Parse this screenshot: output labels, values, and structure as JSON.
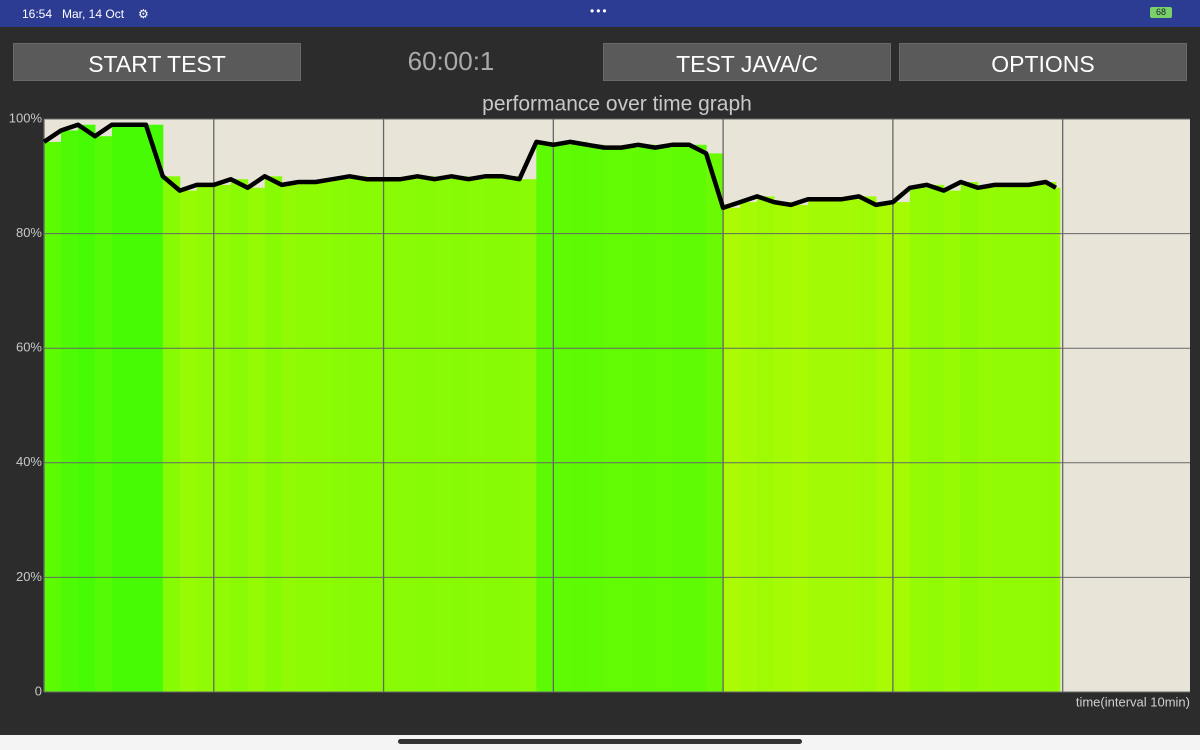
{
  "status_bar": {
    "time": "16:54",
    "date": "Mar, 14 Oct",
    "battery": "68"
  },
  "buttons": [
    "START TEST",
    "TEST JAVA/C",
    "OPTIONS"
  ],
  "timer": "60:00:1",
  "chart_data": {
    "type": "area",
    "title": "performance over time graph",
    "x_label": "time(interval 10min)",
    "x": [
      0,
      1,
      2,
      3,
      4,
      5,
      6,
      7,
      8,
      9,
      10,
      11,
      12,
      13,
      14,
      15,
      16,
      17,
      18,
      19,
      20,
      21,
      22,
      23,
      24,
      25,
      26,
      27,
      28,
      29,
      30,
      31,
      32,
      33,
      34,
      35,
      36,
      37,
      38,
      39,
      40,
      41,
      42,
      43,
      44,
      45,
      46,
      47,
      48,
      49,
      50,
      51,
      52,
      53,
      54,
      55,
      56,
      57,
      58,
      59,
      59.6
    ],
    "series": [
      {
        "name": "performance",
        "color": "#000000",
        "values": [
          96,
          98,
          99,
          97,
          99,
          99,
          99,
          90,
          87.5,
          88.5,
          88.5,
          89.5,
          88,
          90,
          88.5,
          89,
          89,
          89.5,
          90,
          89.5,
          89.5,
          89.5,
          90,
          89.5,
          90,
          89.5,
          90,
          90,
          89.5,
          96,
          95.5,
          96,
          95.5,
          95,
          95,
          95.5,
          95,
          95.5,
          95.5,
          94,
          84.5,
          85.5,
          86.5,
          85.5,
          85,
          86,
          86,
          86,
          86.5,
          85,
          85.5,
          88,
          88.5,
          87.5,
          89,
          88,
          88.5,
          88.5,
          88.5,
          89,
          88
        ]
      }
    ],
    "xlim": [
      0,
      67.5
    ],
    "ylim": [
      0,
      100
    ],
    "xgrid": [
      0,
      10,
      20,
      30,
      40,
      50,
      60
    ],
    "yticks": [
      0,
      {
        "value": 20,
        "label": "20%"
      },
      {
        "value": 40,
        "label": "40%"
      },
      {
        "value": 60,
        "label": "60%"
      },
      {
        "value": 80,
        "label": "80%"
      },
      {
        "value": 100,
        "label": "100%"
      }
    ],
    "grid": true
  }
}
